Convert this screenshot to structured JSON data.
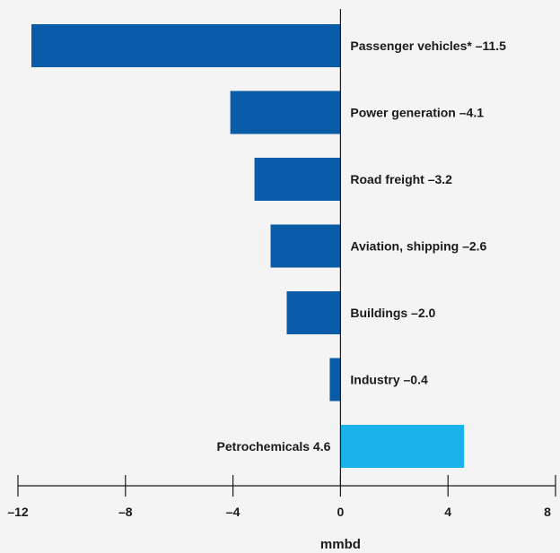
{
  "chart_data": {
    "type": "bar",
    "orientation": "horizontal",
    "categories": [
      "Passenger vehicles*",
      "Power generation",
      "Road freight",
      "Aviation, shipping",
      "Buildings",
      "Industry",
      "Petrochemicals"
    ],
    "values": [
      -11.5,
      -4.1,
      -3.2,
      -2.6,
      -2.0,
      -0.4,
      4.6
    ],
    "bar_labels": [
      "Passenger vehicles* –11.5",
      "Power generation –4.1",
      "Road freight –3.2",
      "Aviation, shipping –2.6",
      "Buildings –2.0",
      "Industry –0.4",
      "Petrochemicals 4.6"
    ],
    "xlabel": "mmbd",
    "ylabel": "",
    "xlim": [
      -12,
      8
    ],
    "xticks": [
      -12,
      -8,
      -4,
      0,
      4,
      8
    ],
    "xtick_labels": [
      "–12",
      "–8",
      "–4",
      "0",
      "4",
      "8"
    ],
    "grid": false,
    "legend": "none",
    "colors": {
      "negative": "#0a5ca8",
      "positive": "#1ab2ea",
      "axis": "#1a1a1a"
    }
  }
}
